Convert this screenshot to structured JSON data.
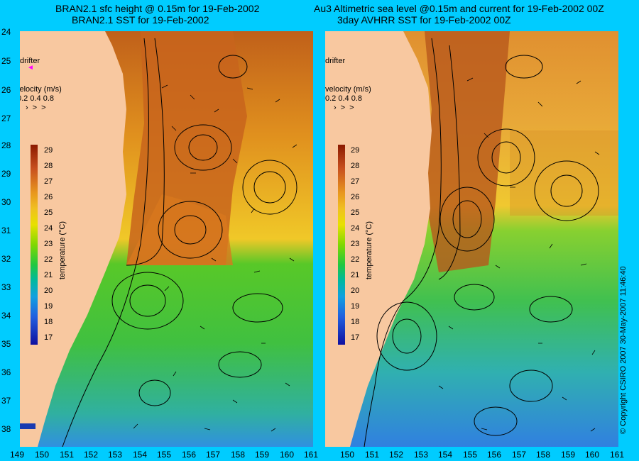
{
  "titles": {
    "left_line1": "BRAN2.1 sfc height @ 0.15m for 19-Feb-2002",
    "left_line2": "BRAN2.1 SST for 19-Feb-2002",
    "right_line1": "Au3 Altimetric sea level  @0.15m and current for 19-Feb-2002 00Z",
    "right_line2": "3day AVHRR SST for 19-Feb-2002 00Z"
  },
  "axes": {
    "lat_labels": [
      "24",
      "25",
      "26",
      "27",
      "28",
      "29",
      "30",
      "31",
      "32",
      "33",
      "34",
      "35",
      "36",
      "37",
      "38"
    ],
    "lon_labels_left": [
      "149",
      "150",
      "151",
      "152",
      "153",
      "154",
      "155",
      "156",
      "157",
      "158",
      "159",
      "160",
      "161"
    ],
    "lon_labels_right": [
      "150",
      "151",
      "152",
      "153",
      "154",
      "155",
      "156",
      "157",
      "158",
      "159",
      "160",
      "161"
    ]
  },
  "legend": {
    "drifter_label": "drifter",
    "velocity_title": "velocity (m/s)",
    "velocity_scale": "0.2 0.4 0.8",
    "temperature_title": "temperature (°C)",
    "temperature_ticks": [
      "29",
      "28",
      "27",
      "26",
      "25",
      "24",
      "23",
      "22",
      "21",
      "20",
      "19",
      "18",
      "17"
    ]
  },
  "copyright": "© Copyright CSIRO 2007  30-May-2007 11:46:40",
  "colors": {
    "background": "#00ccff",
    "land": "#f8c8a0",
    "drifter": "#ff00ff"
  }
}
